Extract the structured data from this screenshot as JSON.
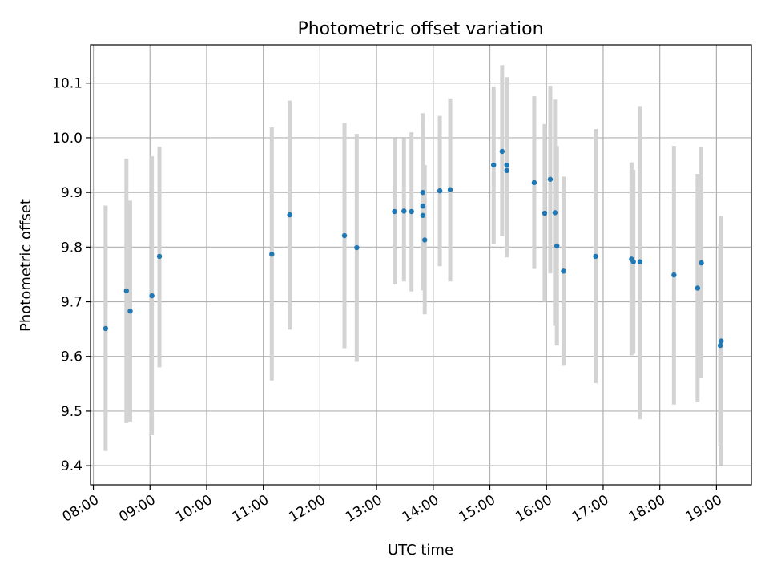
{
  "chart_data": {
    "type": "scatter",
    "title": "Photometric offset variation",
    "xlabel": "UTC time",
    "ylabel": "Photometric offset",
    "x_ticks": [
      "08:00",
      "09:00",
      "10:00",
      "11:00",
      "12:00",
      "13:00",
      "14:00",
      "15:00",
      "16:00",
      "17:00",
      "18:00",
      "19:00"
    ],
    "y_ticks": [
      "9.4",
      "9.5",
      "9.6",
      "9.7",
      "9.8",
      "9.9",
      "10.0",
      "10.1"
    ],
    "xlim": [
      "07:57",
      "19:37"
    ],
    "ylim": [
      9.365,
      10.17
    ],
    "grid": true,
    "colors": {
      "point": "#1f77b4",
      "errorbar": "#d3d3d3",
      "grid": "#b0b0b0"
    },
    "series": [
      {
        "points": [
          {
            "x": "08:13",
            "y": 9.651,
            "err_low": 9.427,
            "err_high": 9.876
          },
          {
            "x": "08:35",
            "y": 9.72,
            "err_low": 9.478,
            "err_high": 9.962
          },
          {
            "x": "08:39",
            "y": 9.683,
            "err_low": 9.481,
            "err_high": 9.885
          },
          {
            "x": "09:02",
            "y": 9.711,
            "err_low": 9.456,
            "err_high": 9.966
          },
          {
            "x": "09:10",
            "y": 9.783,
            "err_low": 9.58,
            "err_high": 9.984
          },
          {
            "x": "11:09",
            "y": 9.787,
            "err_low": 9.556,
            "err_high": 10.019
          },
          {
            "x": "11:28",
            "y": 9.859,
            "err_low": 9.649,
            "err_high": 10.068
          },
          {
            "x": "12:26",
            "y": 9.821,
            "err_low": 9.615,
            "err_high": 10.027
          },
          {
            "x": "12:39",
            "y": 9.799,
            "err_low": 9.59,
            "err_high": 10.007
          },
          {
            "x": "13:19",
            "y": 9.865,
            "err_low": 9.732,
            "err_high": 9.999
          },
          {
            "x": "13:29",
            "y": 9.866,
            "err_low": 9.737,
            "err_high": 9.999
          },
          {
            "x": "13:37",
            "y": 9.865,
            "err_low": 9.719,
            "err_high": 10.01
          },
          {
            "x": "13:49",
            "y": 9.9,
            "err_low": 9.752,
            "err_high": 10.045
          },
          {
            "x": "13:49",
            "y": 9.875,
            "err_low": 9.721,
            "err_high": 10.027
          },
          {
            "x": "13:49",
            "y": 9.858,
            "err_low": 9.73,
            "err_high": 9.988
          },
          {
            "x": "13:51",
            "y": 9.813,
            "err_low": 9.677,
            "err_high": 9.95
          },
          {
            "x": "14:07",
            "y": 9.903,
            "err_low": 9.765,
            "err_high": 10.04
          },
          {
            "x": "14:18",
            "y": 9.905,
            "err_low": 9.737,
            "err_high": 10.072
          },
          {
            "x": "15:04",
            "y": 9.95,
            "err_low": 9.805,
            "err_high": 10.094
          },
          {
            "x": "15:13",
            "y": 9.975,
            "err_low": 9.82,
            "err_high": 10.133
          },
          {
            "x": "15:18",
            "y": 9.95,
            "err_low": 9.79,
            "err_high": 10.111
          },
          {
            "x": "15:18",
            "y": 9.94,
            "err_low": 9.781,
            "err_high": 10.101
          },
          {
            "x": "15:47",
            "y": 9.918,
            "err_low": 9.76,
            "err_high": 10.076
          },
          {
            "x": "15:58",
            "y": 9.862,
            "err_low": 9.7,
            "err_high": 10.025
          },
          {
            "x": "16:04",
            "y": 9.924,
            "err_low": 9.752,
            "err_high": 10.095
          },
          {
            "x": "16:09",
            "y": 9.863,
            "err_low": 9.656,
            "err_high": 10.07
          },
          {
            "x": "16:11",
            "y": 9.802,
            "err_low": 9.62,
            "err_high": 9.985
          },
          {
            "x": "16:18",
            "y": 9.756,
            "err_low": 9.583,
            "err_high": 9.929
          },
          {
            "x": "16:52",
            "y": 9.783,
            "err_low": 9.551,
            "err_high": 10.016
          },
          {
            "x": "17:30",
            "y": 9.778,
            "err_low": 9.602,
            "err_high": 9.955
          },
          {
            "x": "17:32",
            "y": 9.773,
            "err_low": 9.605,
            "err_high": 9.941
          },
          {
            "x": "17:39",
            "y": 9.773,
            "err_low": 9.485,
            "err_high": 10.058
          },
          {
            "x": "18:15",
            "y": 9.749,
            "err_low": 9.512,
            "err_high": 9.985
          },
          {
            "x": "18:40",
            "y": 9.725,
            "err_low": 9.516,
            "err_high": 9.934
          },
          {
            "x": "18:44",
            "y": 9.771,
            "err_low": 9.56,
            "err_high": 9.983
          },
          {
            "x": "19:04",
            "y": 9.62,
            "err_low": 9.436,
            "err_high": 9.805
          },
          {
            "x": "19:05",
            "y": 9.628,
            "err_low": 9.401,
            "err_high": 9.857
          }
        ]
      }
    ]
  }
}
